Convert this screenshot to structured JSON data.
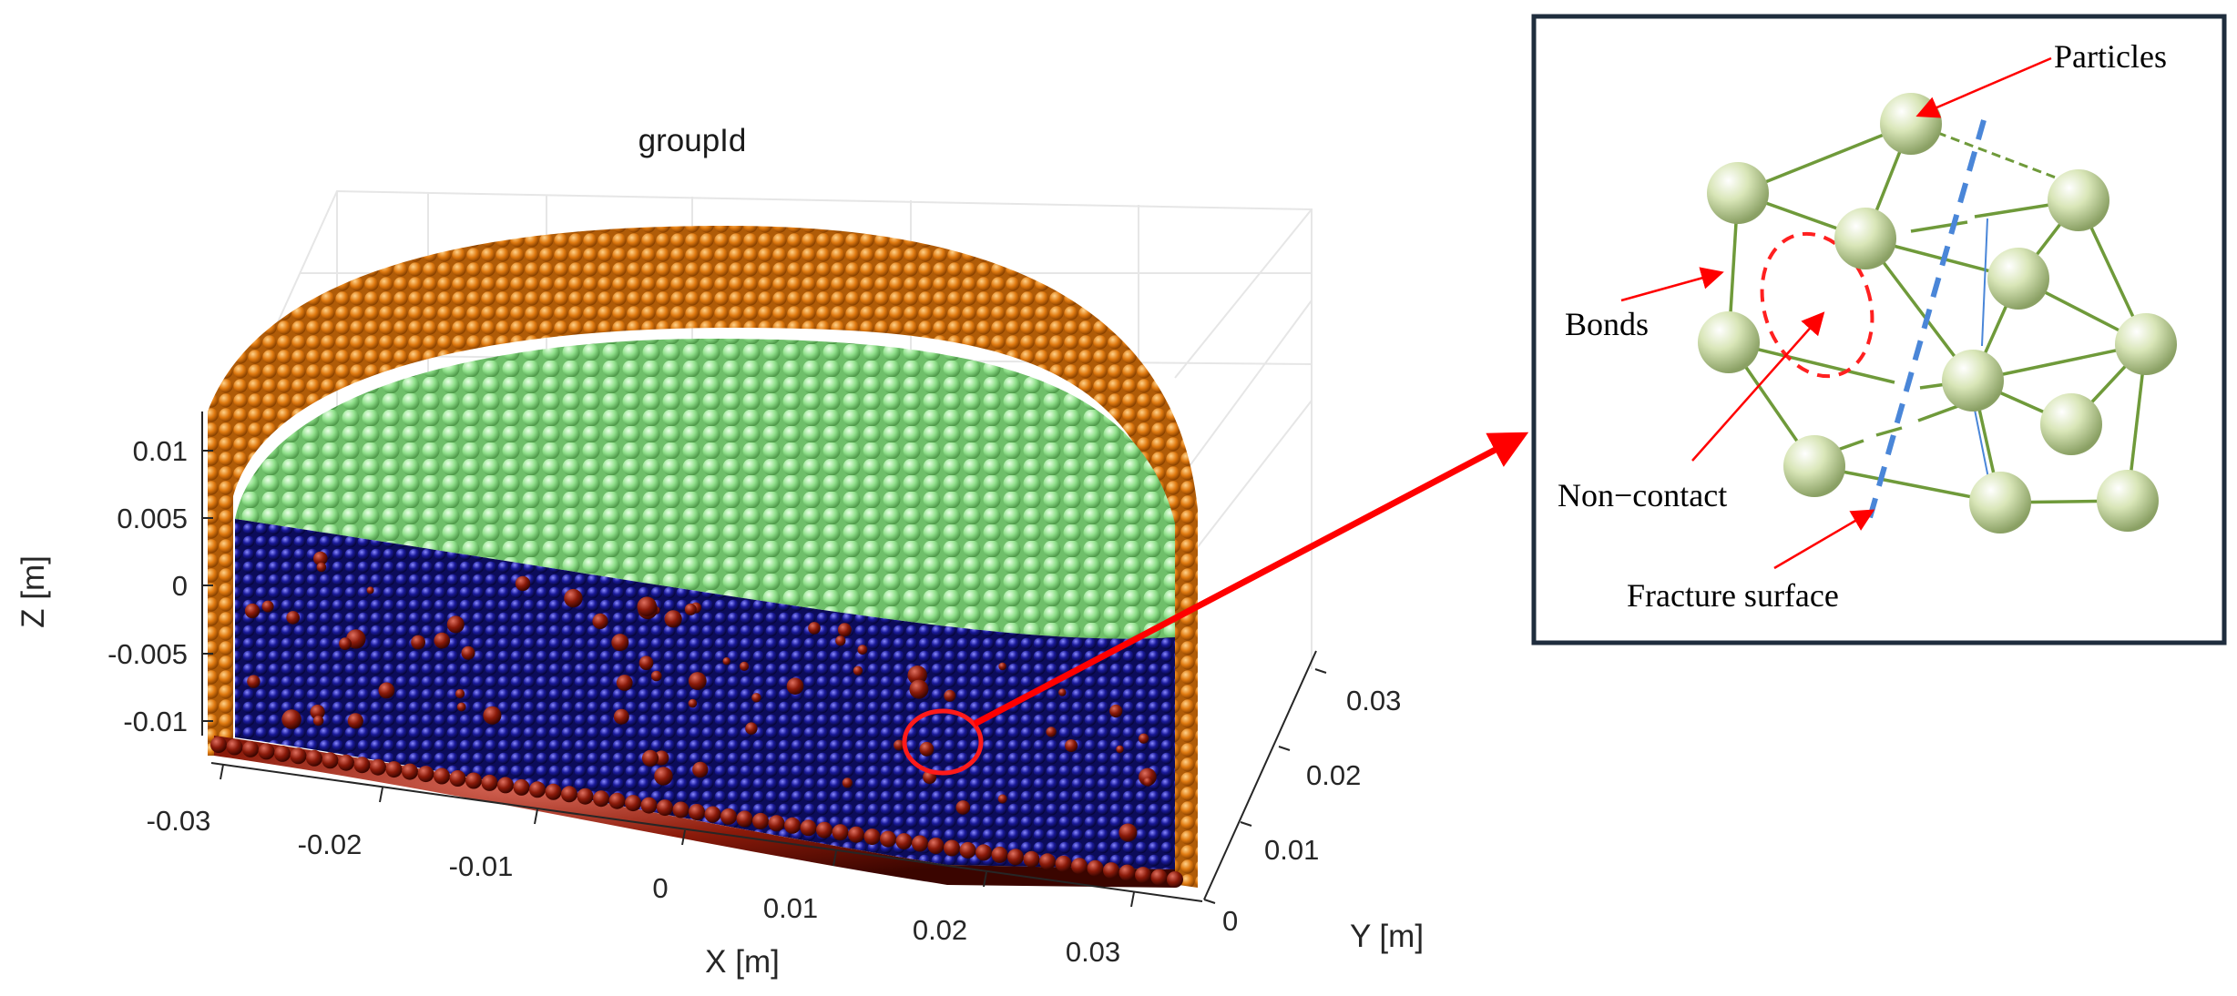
{
  "plot": {
    "title": "groupId",
    "z_axis": {
      "label": "Z [m]",
      "ticks": [
        "0.01",
        "0.005",
        "0",
        "-0.005",
        "-0.01"
      ]
    },
    "x_axis": {
      "label": "X [m]",
      "ticks": [
        "-0.03",
        "-0.02",
        "-0.01",
        "0",
        "0.01",
        "0.02",
        "0.03"
      ]
    },
    "y_axis": {
      "label": "Y [m]",
      "ticks": [
        "0",
        "0.01",
        "0.02",
        "0.03"
      ]
    },
    "colors": {
      "wall": "#e07a10",
      "top_layer": "#8fe08a",
      "bulk": "#1a1a9a",
      "bottom_layer": "#8a1a0a",
      "inclusions": "#8b1a1a",
      "highlight": "#ff1a1a"
    }
  },
  "inset": {
    "labels": {
      "particles": "Particles",
      "bonds": "Bonds",
      "non_contact": "Non−contact",
      "fracture_surface": "Fracture surface"
    },
    "colors": {
      "frame": "#1f2d3d",
      "particle": "#c8d8a0",
      "bond": "#6f9a3a",
      "fracture": "#4a86d8",
      "arrow": "#ff0000"
    }
  }
}
